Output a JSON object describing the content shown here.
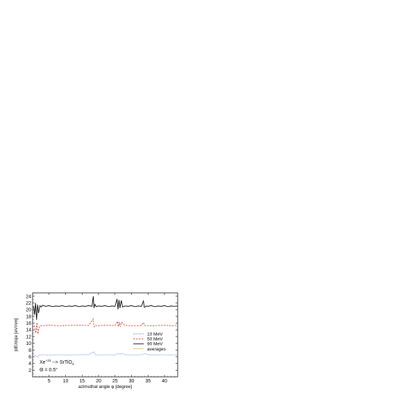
{
  "chart_data": {
    "type": "line",
    "xlabel": "azimuthal angle φ [degree]",
    "ylabel": "|dE/ds|e [eV/nm]",
    "xlim": [
      0,
      44
    ],
    "ylim": [
      0,
      25
    ],
    "xticks": [
      5,
      10,
      15,
      20,
      25,
      30,
      35,
      40
    ],
    "yticks": [
      2,
      4,
      6,
      8,
      10,
      12,
      14,
      16,
      18,
      20,
      22,
      24
    ],
    "grid": false,
    "legend_position": "right-center",
    "annotation": {
      "line1_main": "Xe",
      "line1_sup": "+23",
      "line1_rest": " --> SrTiO",
      "line1_sub": "3",
      "line2": "Θ = 0.5°"
    },
    "series": [
      {
        "name": "10 MeV",
        "color": "#3355cc",
        "style": "dotted",
        "baseline": 6.6,
        "x": [
          0.5,
          1.0,
          1.5,
          2.0,
          2.5,
          3,
          5,
          8,
          10,
          14,
          17,
          18.5,
          19,
          20,
          22,
          25,
          26,
          26.5,
          27,
          28,
          30,
          33,
          34,
          36,
          38,
          40,
          42,
          44
        ],
        "values": [
          6.6,
          6.3,
          5.9,
          6.6,
          6.5,
          6.6,
          6.5,
          6.6,
          6.5,
          6.6,
          6.6,
          7.5,
          6.6,
          6.5,
          6.6,
          6.5,
          7.0,
          6.7,
          7.0,
          6.6,
          6.5,
          6.6,
          6.9,
          6.5,
          6.6,
          6.6,
          6.5,
          6.6
        ]
      },
      {
        "name": "50 MeV",
        "color": "#dd2222",
        "style": "dashed",
        "baseline": 15.3,
        "x": [
          0.5,
          1.0,
          1.3,
          1.6,
          2.0,
          2.5,
          3,
          5,
          8,
          10,
          14,
          17,
          18.4,
          18.6,
          19,
          20,
          22,
          25,
          25.8,
          26,
          26.3,
          26.6,
          27,
          28,
          30,
          33,
          33.6,
          34,
          36,
          38,
          40,
          42,
          44
        ],
        "values": [
          15.3,
          13.0,
          16.2,
          12.8,
          14.8,
          15.3,
          15.2,
          15.4,
          15.2,
          15.3,
          15.4,
          15.3,
          17.3,
          14.9,
          15.3,
          15.2,
          15.4,
          15.3,
          16.5,
          14.9,
          16.3,
          14.9,
          16.3,
          15.3,
          15.2,
          15.3,
          16.2,
          15.3,
          15.2,
          15.3,
          15.4,
          15.2,
          15.3
        ]
      },
      {
        "name": "90 MeV",
        "color": "#000000",
        "style": "solid",
        "baseline": 21.0,
        "x": [
          0.3,
          0.6,
          0.9,
          1.2,
          1.5,
          1.8,
          2.2,
          2.6,
          3.0,
          4,
          5,
          6,
          7,
          8,
          9,
          10,
          11,
          12,
          13,
          14,
          15,
          16,
          17,
          18,
          18.4,
          18.6,
          18.9,
          19.3,
          20,
          21,
          22,
          23,
          24,
          25,
          25.6,
          25.9,
          26.2,
          26.5,
          26.9,
          27.3,
          28,
          29,
          30,
          31,
          32,
          33,
          33.6,
          33.9,
          34.5,
          35,
          36,
          37,
          38,
          39,
          40,
          41,
          42,
          43,
          44
        ],
        "values": [
          21.0,
          18.5,
          22.0,
          17.0,
          21.5,
          19.0,
          21.2,
          20.8,
          21.3,
          21.0,
          21.2,
          20.9,
          21.1,
          21.0,
          21.2,
          20.9,
          21.1,
          21.0,
          21.2,
          20.9,
          21.1,
          21.0,
          21.2,
          21.0,
          24.0,
          20.5,
          21.6,
          20.9,
          21.1,
          21.0,
          21.2,
          20.9,
          21.1,
          21.0,
          23.2,
          20.1,
          22.9,
          20.5,
          22.8,
          20.8,
          21.1,
          21.0,
          21.2,
          20.9,
          21.1,
          21.0,
          22.6,
          20.7,
          21.1,
          21.0,
          21.2,
          20.9,
          21.1,
          21.0,
          21.2,
          20.9,
          21.1,
          21.0,
          21.1
        ]
      },
      {
        "name": "averages",
        "color": "#e8c060",
        "style": "solid",
        "x": [
          0,
          44
        ],
        "values": [
          null,
          null
        ]
      }
    ]
  }
}
